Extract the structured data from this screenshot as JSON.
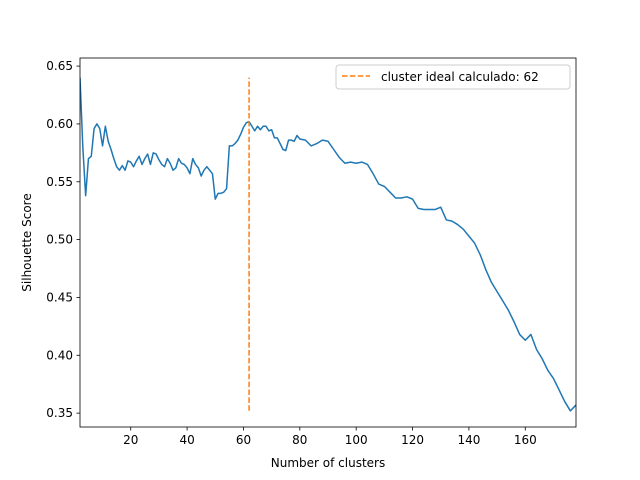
{
  "chart_data": {
    "type": "line",
    "title": "",
    "xlabel": "Number of clusters",
    "ylabel": "Silhouette Score",
    "xlim": [
      2,
      178
    ],
    "ylim": [
      0.338,
      0.657
    ],
    "xticks": [
      20,
      40,
      60,
      80,
      100,
      120,
      140,
      160
    ],
    "yticks": [
      0.35,
      0.4,
      0.45,
      0.5,
      0.55,
      0.6,
      0.65
    ],
    "ytick_labels": [
      "0.35",
      "0.40",
      "0.45",
      "0.50",
      "0.55",
      "0.60",
      "0.65"
    ],
    "grid": false,
    "legend_position": "upper right",
    "series": [
      {
        "color": "#1f77b4",
        "style": "solid",
        "x": [
          2,
          3,
          4,
          5,
          6,
          7,
          8,
          9,
          10,
          11,
          12,
          13,
          14,
          15,
          16,
          17,
          18,
          19,
          20,
          21,
          22,
          23,
          24,
          25,
          26,
          27,
          28,
          29,
          30,
          31,
          32,
          33,
          34,
          35,
          36,
          37,
          38,
          39,
          40,
          41,
          42,
          43,
          44,
          45,
          46,
          47,
          48,
          49,
          50,
          51,
          52,
          53,
          54,
          55,
          56,
          57,
          58,
          59,
          60,
          61,
          62,
          63,
          64,
          65,
          66,
          67,
          68,
          69,
          70,
          71,
          72,
          73,
          74,
          75,
          76,
          77,
          78,
          79,
          80,
          82,
          84,
          86,
          88,
          90,
          92,
          94,
          96,
          98,
          100,
          102,
          104,
          106,
          108,
          110,
          112,
          114,
          116,
          118,
          120,
          122,
          124,
          126,
          128,
          130,
          132,
          134,
          136,
          138,
          140,
          142,
          144,
          146,
          148,
          150,
          152,
          154,
          156,
          158,
          160,
          162,
          164,
          166,
          168,
          170,
          172,
          174,
          176,
          178
        ],
        "y": [
          0.64,
          0.58,
          0.538,
          0.57,
          0.572,
          0.596,
          0.6,
          0.596,
          0.581,
          0.598,
          0.585,
          0.578,
          0.57,
          0.563,
          0.56,
          0.564,
          0.56,
          0.568,
          0.567,
          0.563,
          0.568,
          0.572,
          0.565,
          0.57,
          0.574,
          0.565,
          0.575,
          0.574,
          0.569,
          0.565,
          0.563,
          0.57,
          0.566,
          0.56,
          0.562,
          0.57,
          0.566,
          0.565,
          0.562,
          0.557,
          0.57,
          0.565,
          0.562,
          0.555,
          0.56,
          0.563,
          0.56,
          0.557,
          0.535,
          0.54,
          0.54,
          0.541,
          0.544,
          0.581,
          0.581,
          0.583,
          0.586,
          0.591,
          0.597,
          0.601,
          0.602,
          0.598,
          0.594,
          0.598,
          0.595,
          0.598,
          0.598,
          0.594,
          0.595,
          0.588,
          0.588,
          0.583,
          0.578,
          0.577,
          0.586,
          0.586,
          0.585,
          0.59,
          0.587,
          0.586,
          0.581,
          0.583,
          0.586,
          0.585,
          0.578,
          0.571,
          0.566,
          0.567,
          0.566,
          0.567,
          0.565,
          0.557,
          0.548,
          0.546,
          0.541,
          0.536,
          0.536,
          0.537,
          0.535,
          0.527,
          0.526,
          0.526,
          0.526,
          0.528,
          0.517,
          0.516,
          0.513,
          0.509,
          0.503,
          0.497,
          0.487,
          0.474,
          0.463,
          0.455,
          0.447,
          0.439,
          0.429,
          0.418,
          0.413,
          0.418,
          0.405,
          0.397,
          0.387,
          0.38,
          0.37,
          0.36,
          0.352,
          0.357
        ]
      }
    ],
    "reference_lines": [
      {
        "label": "cluster ideal calculado: 62",
        "color": "#ff7f0e",
        "style": "dashed",
        "x": 62,
        "y_range": [
          0.352,
          0.64
        ]
      }
    ]
  }
}
